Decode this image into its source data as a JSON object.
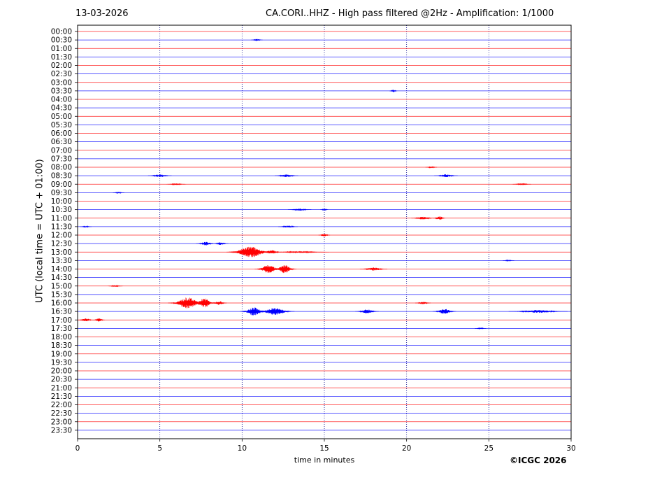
{
  "header": {
    "date": "13-03-2026",
    "title": "CA.CORI..HHZ - High pass filtered @2Hz - Amplification: 1/1000"
  },
  "footer": {
    "copyright": "©ICGC 2026"
  },
  "chart_data": {
    "type": "line",
    "title": "CA.CORI..HHZ - High pass filtered @2Hz - Amplification: 1/1000",
    "xlabel": "time in minutes",
    "ylabel": "UTC (local time = UTC + 01:00)",
    "xlim": [
      0,
      30
    ],
    "x_ticks": [
      0,
      5,
      10,
      15,
      20,
      25,
      30
    ],
    "grid": "vertical dotted lines at x ticks",
    "colors": {
      "odd_hours_trace": "#ff0000",
      "even_hours_trace": "#0000ff",
      "base_row": "#ff0000",
      "half_row": "#0000ff"
    },
    "series": [
      {
        "name": "00:00",
        "color": "#ff0000",
        "bursts": []
      },
      {
        "name": "00:30",
        "color": "#0000ff",
        "bursts": [
          [
            10.9,
            0.3,
            1.5
          ]
        ]
      },
      {
        "name": "01:00",
        "color": "#ff0000",
        "bursts": []
      },
      {
        "name": "01:30",
        "color": "#0000ff",
        "bursts": []
      },
      {
        "name": "02:00",
        "color": "#ff0000",
        "bursts": []
      },
      {
        "name": "02:30",
        "color": "#0000ff",
        "bursts": []
      },
      {
        "name": "03:00",
        "color": "#ff0000",
        "bursts": []
      },
      {
        "name": "03:30",
        "color": "#0000ff",
        "bursts": [
          [
            19.2,
            0.2,
            2
          ]
        ]
      },
      {
        "name": "04:00",
        "color": "#ff0000",
        "bursts": []
      },
      {
        "name": "04:30",
        "color": "#0000ff",
        "bursts": []
      },
      {
        "name": "05:00",
        "color": "#ff0000",
        "bursts": []
      },
      {
        "name": "05:30",
        "color": "#0000ff",
        "bursts": []
      },
      {
        "name": "06:00",
        "color": "#ff0000",
        "bursts": []
      },
      {
        "name": "06:30",
        "color": "#0000ff",
        "bursts": []
      },
      {
        "name": "07:00",
        "color": "#ff0000",
        "bursts": []
      },
      {
        "name": "07:30",
        "color": "#0000ff",
        "bursts": []
      },
      {
        "name": "08:00",
        "color": "#ff0000",
        "bursts": [
          [
            21.5,
            0.3,
            1
          ]
        ]
      },
      {
        "name": "08:30",
        "color": "#0000ff",
        "bursts": [
          [
            5.0,
            0.6,
            2
          ],
          [
            12.7,
            0.6,
            2
          ],
          [
            22.4,
            0.6,
            2
          ]
        ]
      },
      {
        "name": "09:00",
        "color": "#ff0000",
        "bursts": [
          [
            6.0,
            0.5,
            1
          ],
          [
            27.0,
            0.5,
            1
          ]
        ]
      },
      {
        "name": "09:30",
        "color": "#0000ff",
        "bursts": [
          [
            2.5,
            0.3,
            1
          ]
        ]
      },
      {
        "name": "10:00",
        "color": "#ff0000",
        "bursts": []
      },
      {
        "name": "10:30",
        "color": "#0000ff",
        "bursts": [
          [
            13.5,
            0.6,
            1.5
          ],
          [
            15.0,
            0.2,
            1.5
          ]
        ]
      },
      {
        "name": "11:00",
        "color": "#ff0000",
        "bursts": [
          [
            21.0,
            0.6,
            2
          ],
          [
            22.0,
            0.3,
            3
          ]
        ]
      },
      {
        "name": "11:30",
        "color": "#0000ff",
        "bursts": [
          [
            0.5,
            0.3,
            1
          ],
          [
            12.8,
            0.5,
            1.5
          ]
        ]
      },
      {
        "name": "12:00",
        "color": "#ff0000",
        "bursts": [
          [
            15.0,
            0.3,
            2
          ]
        ]
      },
      {
        "name": "12:30",
        "color": "#0000ff",
        "bursts": [
          [
            7.8,
            0.5,
            2.5
          ],
          [
            8.7,
            0.4,
            2
          ]
        ]
      },
      {
        "name": "13:00",
        "color": "#ff0000",
        "bursts": [
          [
            10.5,
            1.2,
            8
          ],
          [
            11.8,
            0.5,
            3
          ],
          [
            13.5,
            1.5,
            1
          ]
        ]
      },
      {
        "name": "13:30",
        "color": "#0000ff",
        "bursts": [
          [
            26.2,
            0.3,
            1
          ]
        ]
      },
      {
        "name": "14:00",
        "color": "#ff0000",
        "bursts": [
          [
            11.6,
            0.7,
            6
          ],
          [
            12.6,
            0.6,
            6
          ],
          [
            18.0,
            0.7,
            2.5
          ]
        ]
      },
      {
        "name": "14:30",
        "color": "#0000ff",
        "bursts": []
      },
      {
        "name": "15:00",
        "color": "#ff0000",
        "bursts": [
          [
            2.3,
            0.4,
            1
          ]
        ]
      },
      {
        "name": "15:30",
        "color": "#0000ff",
        "bursts": []
      },
      {
        "name": "16:00",
        "color": "#ff0000",
        "bursts": [
          [
            6.7,
            1.0,
            8
          ],
          [
            7.7,
            0.6,
            7
          ],
          [
            8.6,
            0.4,
            3
          ],
          [
            21.0,
            0.4,
            2
          ]
        ]
      },
      {
        "name": "16:30",
        "color": "#0000ff",
        "bursts": [
          [
            10.7,
            0.7,
            6
          ],
          [
            12.0,
            1.0,
            5
          ],
          [
            17.6,
            0.6,
            3
          ],
          [
            22.3,
            0.6,
            4
          ],
          [
            28.0,
            1.5,
            2
          ]
        ]
      },
      {
        "name": "17:00",
        "color": "#ff0000",
        "bursts": [
          [
            0.5,
            0.4,
            2.5
          ],
          [
            1.3,
            0.3,
            2.5
          ]
        ]
      },
      {
        "name": "17:30",
        "color": "#0000ff",
        "bursts": [
          [
            24.5,
            0.3,
            1
          ]
        ]
      },
      {
        "name": "18:00",
        "color": "#ff0000",
        "bursts": []
      },
      {
        "name": "18:30",
        "color": "#0000ff",
        "bursts": []
      },
      {
        "name": "19:00",
        "color": "#ff0000",
        "bursts": []
      },
      {
        "name": "19:30",
        "color": "#0000ff",
        "bursts": []
      },
      {
        "name": "20:00",
        "color": "#ff0000",
        "bursts": []
      },
      {
        "name": "20:30",
        "color": "#0000ff",
        "bursts": []
      },
      {
        "name": "21:00",
        "color": "#ff0000",
        "bursts": []
      },
      {
        "name": "21:30",
        "color": "#0000ff",
        "bursts": []
      },
      {
        "name": "22:00",
        "color": "#ff0000",
        "bursts": []
      },
      {
        "name": "22:30",
        "color": "#0000ff",
        "bursts": []
      },
      {
        "name": "23:00",
        "color": "#ff0000",
        "bursts": []
      },
      {
        "name": "23:30",
        "color": "#0000ff",
        "bursts": []
      }
    ]
  }
}
